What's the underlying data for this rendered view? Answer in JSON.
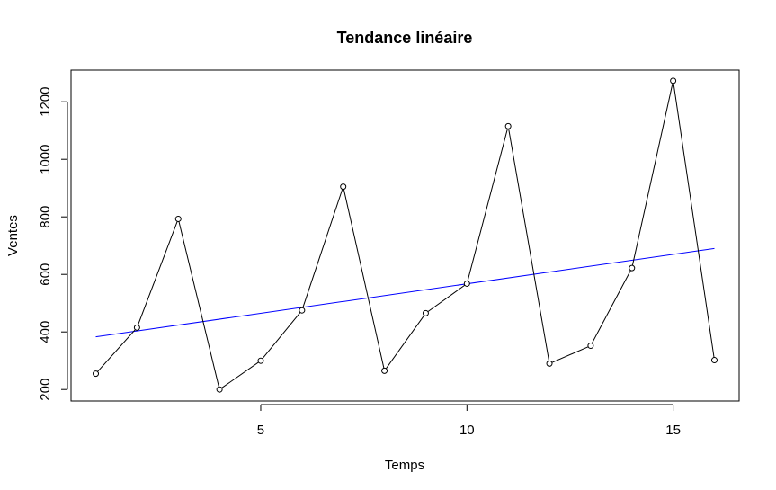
{
  "chart_data": {
    "type": "line",
    "title": "Tendance linéaire",
    "xlabel": "Temps",
    "ylabel": "Ventes",
    "xlim": [
      0.4,
      16.6
    ],
    "ylim": [
      160,
      1310
    ],
    "x_ticks": [
      5,
      10,
      15
    ],
    "y_ticks": [
      200,
      400,
      600,
      800,
      1000,
      1200
    ],
    "grid": false,
    "legend": "none",
    "colors": {
      "data_line": "#000000",
      "trend_line": "#0000ff",
      "frame": "#000000"
    },
    "series": [
      {
        "kind": "line-with-points",
        "x": [
          1,
          2,
          3,
          4,
          5,
          6,
          7,
          8,
          9,
          10,
          11,
          12,
          13,
          14,
          15,
          16
        ],
        "values": [
          255,
          415,
          793,
          200,
          300,
          475,
          905,
          265,
          465,
          568,
          1115,
          290,
          352,
          622,
          1273,
          302
        ]
      },
      {
        "kind": "linear-trend",
        "x": [
          1,
          16
        ],
        "values": [
          383,
          690
        ]
      }
    ]
  }
}
